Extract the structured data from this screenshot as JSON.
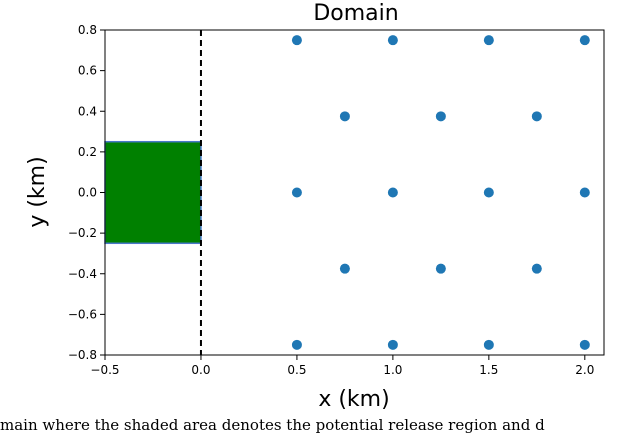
{
  "chart_data": {
    "type": "scatter",
    "title": "Domain",
    "xlabel": "x (km)",
    "ylabel": "y (km)",
    "xlim": [
      -0.5,
      2.1
    ],
    "ylim": [
      -0.8,
      0.8
    ],
    "x_ticks": [
      "−0.5",
      "0.0",
      "0.5",
      "1.0",
      "1.5",
      "2.0"
    ],
    "x_tick_values": [
      -0.5,
      0.0,
      0.5,
      1.0,
      1.5,
      2.0
    ],
    "y_ticks": [
      "−0.8",
      "−0.6",
      "−0.4",
      "−0.2",
      "0.0",
      "0.2",
      "0.4",
      "0.6",
      "0.8"
    ],
    "y_tick_values": [
      -0.8,
      -0.6,
      -0.4,
      -0.2,
      0.0,
      0.2,
      0.4,
      0.6,
      0.8
    ],
    "grid": false,
    "points": {
      "color": "#1f77b4",
      "x": [
        0.5,
        1.0,
        1.5,
        2.0,
        0.75,
        1.25,
        1.75,
        0.5,
        1.0,
        1.5,
        2.0,
        0.75,
        1.25,
        1.75,
        0.5,
        1.0,
        1.5,
        2.0
      ],
      "y": [
        0.75,
        0.75,
        0.75,
        0.75,
        0.375,
        0.375,
        0.375,
        0.0,
        0.0,
        0.0,
        0.0,
        -0.375,
        -0.375,
        -0.375,
        -0.75,
        -0.75,
        -0.75,
        -0.75
      ]
    },
    "shaded_region": {
      "x": [
        -0.5,
        0.0
      ],
      "y": [
        -0.25,
        0.25
      ],
      "color": "#008000"
    },
    "vertical_line": {
      "x": 0.0,
      "style": "dashed",
      "color": "#000000"
    }
  },
  "caption": "main where the shaded area denotes the potential release region and d"
}
